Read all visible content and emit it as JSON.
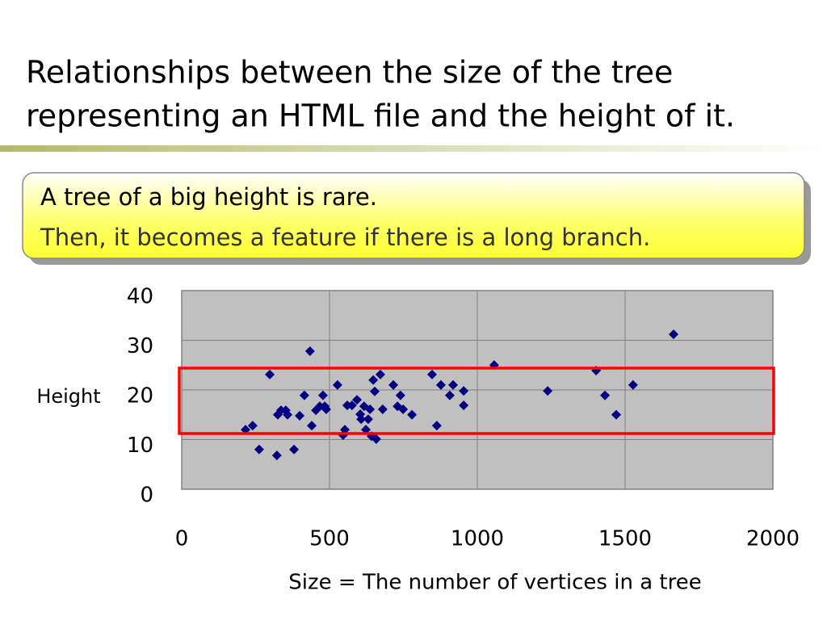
{
  "title": [
    "Relationships between the size of the tree",
    "representing an HTML file and the height of it."
  ],
  "callout": [
    "A tree of a big height is rare.",
    "Then, it becomes a feature if there is a long branch."
  ],
  "chart_data": {
    "type": "scatter",
    "color": "#000080",
    "x_label": "Size = The number of vertices in a tree",
    "y_label": "Height",
    "xlim": [
      0,
      2000
    ],
    "xticks": [
      0,
      500,
      1000,
      1500,
      2000
    ],
    "ylim": [
      0,
      40
    ],
    "yticks": [
      0,
      10,
      20,
      30,
      40
    ],
    "grid": true,
    "x": [
      216,
      240,
      262,
      298,
      322,
      325,
      336,
      352,
      358,
      380,
      399,
      415,
      434,
      440,
      454,
      467,
      478,
      484,
      489,
      527,
      546,
      552,
      560,
      576,
      593,
      604,
      607,
      617,
      623,
      631,
      637,
      642,
      648,
      653,
      658,
      672,
      680,
      716,
      730,
      740,
      749,
      779,
      847,
      863,
      877,
      907,
      918,
      954,
      954,
      1057,
      1238,
      1402,
      1432,
      1470,
      1527,
      1664
    ],
    "values": [
      12,
      12.8,
      8,
      23.1,
      6.8,
      15,
      15.9,
      15.9,
      15,
      8,
      14.8,
      18.9,
      27.8,
      12.8,
      15.9,
      16.7,
      18.9,
      16.7,
      16.1,
      21,
      10.9,
      12,
      16.9,
      16.9,
      18,
      15.1,
      14.1,
      16.7,
      12,
      14.1,
      16.1,
      10.7,
      22,
      19.7,
      10.1,
      23.1,
      16.1,
      21,
      16.7,
      18.9,
      16.1,
      15,
      23.1,
      12.8,
      21,
      18.9,
      21,
      19.8,
      16.9,
      25,
      19.8,
      23.9,
      18.9,
      15,
      21,
      31.2
    ]
  }
}
